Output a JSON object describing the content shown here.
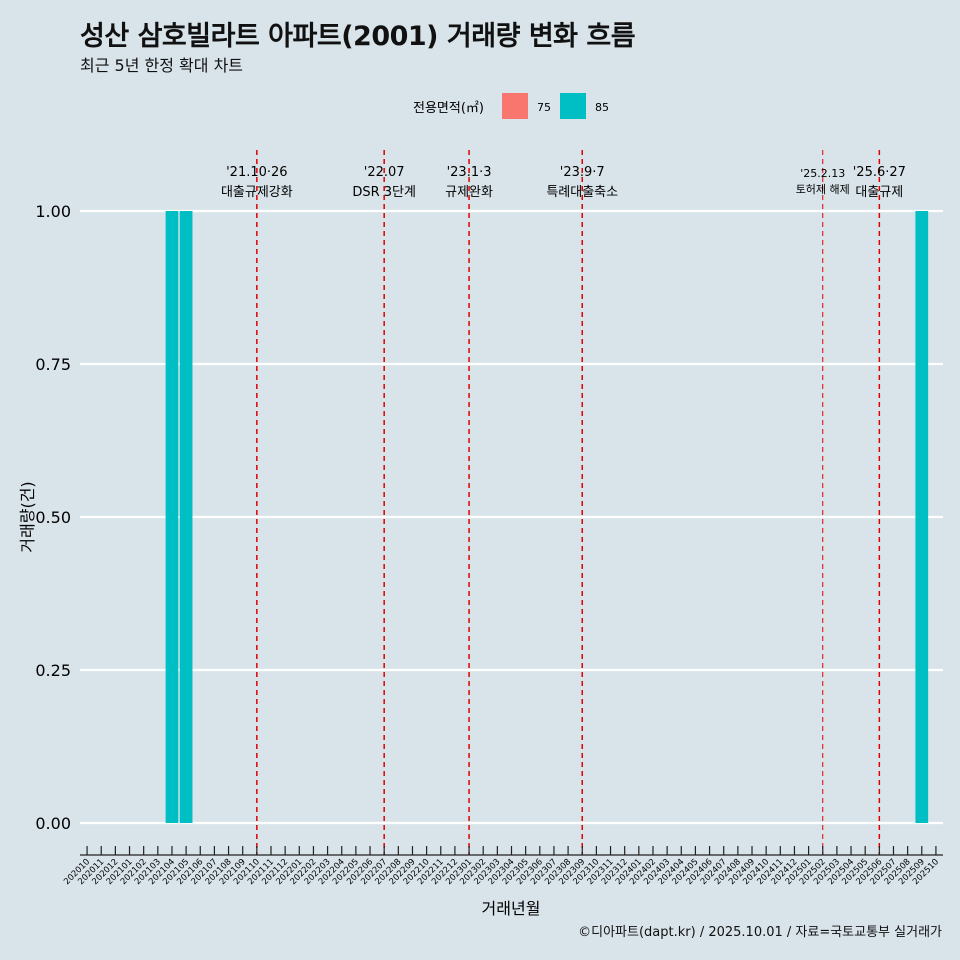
{
  "header": {
    "title": "성산 삼호빌라트 아파트(2001) 거래량 변화 흐름",
    "subtitle": "최근 5년 한정 확대 차트"
  },
  "caption": "©디아파트(dapt.kr) / 2025.10.01 / 자료=국토교통부 실거래가",
  "legend": {
    "title": "전용면적(㎡)",
    "items": [
      {
        "label": "75",
        "color": "#f8766d"
      },
      {
        "label": "85",
        "color": "#00bfc4"
      }
    ]
  },
  "chart_data": {
    "type": "bar",
    "xlabel": "거래년월",
    "ylabel": "거래량(건)",
    "ylim": [
      0,
      1
    ],
    "y_ticks": [
      "0.00",
      "0.25",
      "0.50",
      "0.75",
      "1.00"
    ],
    "categories": [
      "202010",
      "202011",
      "202012",
      "202101",
      "202102",
      "202103",
      "202104",
      "202105",
      "202106",
      "202107",
      "202108",
      "202109",
      "202110",
      "202111",
      "202112",
      "202201",
      "202202",
      "202203",
      "202204",
      "202205",
      "202206",
      "202207",
      "202208",
      "202209",
      "202210",
      "202211",
      "202212",
      "202301",
      "202302",
      "202303",
      "202304",
      "202305",
      "202306",
      "202307",
      "202308",
      "202309",
      "202310",
      "202311",
      "202312",
      "202401",
      "202402",
      "202403",
      "202404",
      "202405",
      "202406",
      "202407",
      "202408",
      "202409",
      "202410",
      "202411",
      "202412",
      "202501",
      "202502",
      "202503",
      "202504",
      "202505",
      "202506",
      "202507",
      "202508",
      "202509",
      "202510"
    ],
    "series": [
      {
        "name": "85",
        "color": "#00bfc4",
        "points": [
          {
            "x": "202104",
            "value": 1
          },
          {
            "x": "202105",
            "value": 1
          },
          {
            "x": "202509",
            "value": 1
          }
        ]
      }
    ],
    "annotations": [
      {
        "x": "202110",
        "date": "'21.10·26",
        "label": "대출규제강화",
        "small": false
      },
      {
        "x": "202207",
        "date": "'22.07",
        "label": "DSR 3단계",
        "small": false
      },
      {
        "x": "202301",
        "date": "'23.1·3",
        "label": "규제완화",
        "small": false
      },
      {
        "x": "202309",
        "date": "'23.9·7",
        "label": "특례대출축소",
        "small": false
      },
      {
        "x": "202502",
        "date": "'25.2.13",
        "label": "토허제 해제",
        "small": true
      },
      {
        "x": "202506",
        "date": "'25.6·27",
        "label": "대출규제",
        "small": false
      }
    ]
  }
}
